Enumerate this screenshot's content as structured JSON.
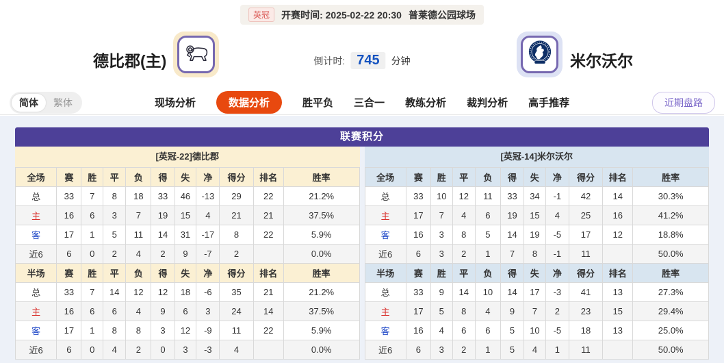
{
  "header": {
    "league": "英冠",
    "kickoff": "开赛时间: 2025-02-22 20:30",
    "venue": "普莱德公园球场",
    "home_team": "德比郡(主)",
    "away_team": "米尔沃尔",
    "countdown_label": "倒计时:",
    "countdown_value": "745",
    "countdown_unit": "分钟"
  },
  "nav": {
    "lang": [
      "简体",
      "繁体"
    ],
    "tabs": [
      "现场分析",
      "数据分析",
      "胜平负",
      "三合一",
      "教练分析",
      "裁判分析",
      "高手推荐"
    ],
    "active_tab": "数据分析",
    "recent_button": "近期盘路"
  },
  "table": {
    "title": "联赛积分",
    "label_colors": {
      "总": "#333333",
      "主": "#d9302c",
      "客": "#1f48c8",
      "近6": "#333333"
    },
    "home": {
      "team_header": "[英冠-22]德比郡",
      "sections": [
        {
          "columns": [
            "全场",
            "赛",
            "胜",
            "平",
            "负",
            "得",
            "失",
            "净",
            "得分",
            "排名",
            "胜率"
          ],
          "rows": [
            [
              "总",
              "33",
              "7",
              "8",
              "18",
              "33",
              "46",
              "-13",
              "29",
              "22",
              "21.2%"
            ],
            [
              "主",
              "16",
              "6",
              "3",
              "7",
              "19",
              "15",
              "4",
              "21",
              "21",
              "37.5%"
            ],
            [
              "客",
              "17",
              "1",
              "5",
              "11",
              "14",
              "31",
              "-17",
              "8",
              "22",
              "5.9%"
            ],
            [
              "近6",
              "6",
              "0",
              "2",
              "4",
              "2",
              "9",
              "-7",
              "2",
              "",
              "0.0%"
            ]
          ]
        },
        {
          "columns": [
            "半场",
            "赛",
            "胜",
            "平",
            "负",
            "得",
            "失",
            "净",
            "得分",
            "排名",
            "胜率"
          ],
          "rows": [
            [
              "总",
              "33",
              "7",
              "14",
              "12",
              "12",
              "18",
              "-6",
              "35",
              "21",
              "21.2%"
            ],
            [
              "主",
              "16",
              "6",
              "6",
              "4",
              "9",
              "6",
              "3",
              "24",
              "14",
              "37.5%"
            ],
            [
              "客",
              "17",
              "1",
              "8",
              "8",
              "3",
              "12",
              "-9",
              "11",
              "22",
              "5.9%"
            ],
            [
              "近6",
              "6",
              "0",
              "4",
              "2",
              "0",
              "3",
              "-3",
              "4",
              "",
              "0.0%"
            ]
          ]
        }
      ]
    },
    "away": {
      "team_header": "[英冠-14]米尔沃尔",
      "sections": [
        {
          "columns": [
            "全场",
            "赛",
            "胜",
            "平",
            "负",
            "得",
            "失",
            "净",
            "得分",
            "排名",
            "胜率"
          ],
          "rows": [
            [
              "总",
              "33",
              "10",
              "12",
              "11",
              "33",
              "34",
              "-1",
              "42",
              "14",
              "30.3%"
            ],
            [
              "主",
              "17",
              "7",
              "4",
              "6",
              "19",
              "15",
              "4",
              "25",
              "16",
              "41.2%"
            ],
            [
              "客",
              "16",
              "3",
              "8",
              "5",
              "14",
              "19",
              "-5",
              "17",
              "12",
              "18.8%"
            ],
            [
              "近6",
              "6",
              "3",
              "2",
              "1",
              "7",
              "8",
              "-1",
              "11",
              "",
              "50.0%"
            ]
          ]
        },
        {
          "columns": [
            "半场",
            "赛",
            "胜",
            "平",
            "负",
            "得",
            "失",
            "净",
            "得分",
            "排名",
            "胜率"
          ],
          "rows": [
            [
              "总",
              "33",
              "9",
              "14",
              "10",
              "14",
              "17",
              "-3",
              "41",
              "13",
              "27.3%"
            ],
            [
              "主",
              "17",
              "5",
              "8",
              "4",
              "9",
              "7",
              "2",
              "23",
              "15",
              "29.4%"
            ],
            [
              "客",
              "16",
              "4",
              "6",
              "6",
              "5",
              "10",
              "-5",
              "18",
              "13",
              "25.0%"
            ],
            [
              "近6",
              "6",
              "3",
              "2",
              "1",
              "5",
              "4",
              "1",
              "11",
              "",
              "50.0%"
            ]
          ]
        }
      ]
    }
  },
  "colors": {
    "accent_purple": "#4d4098",
    "active_orange": "#e8490f",
    "home_hdr_bg": "#fbf0d3",
    "away_hdr_bg": "#d8e5f0",
    "countdown_blue": "#1553c0",
    "badge_red": "#d9534f"
  }
}
